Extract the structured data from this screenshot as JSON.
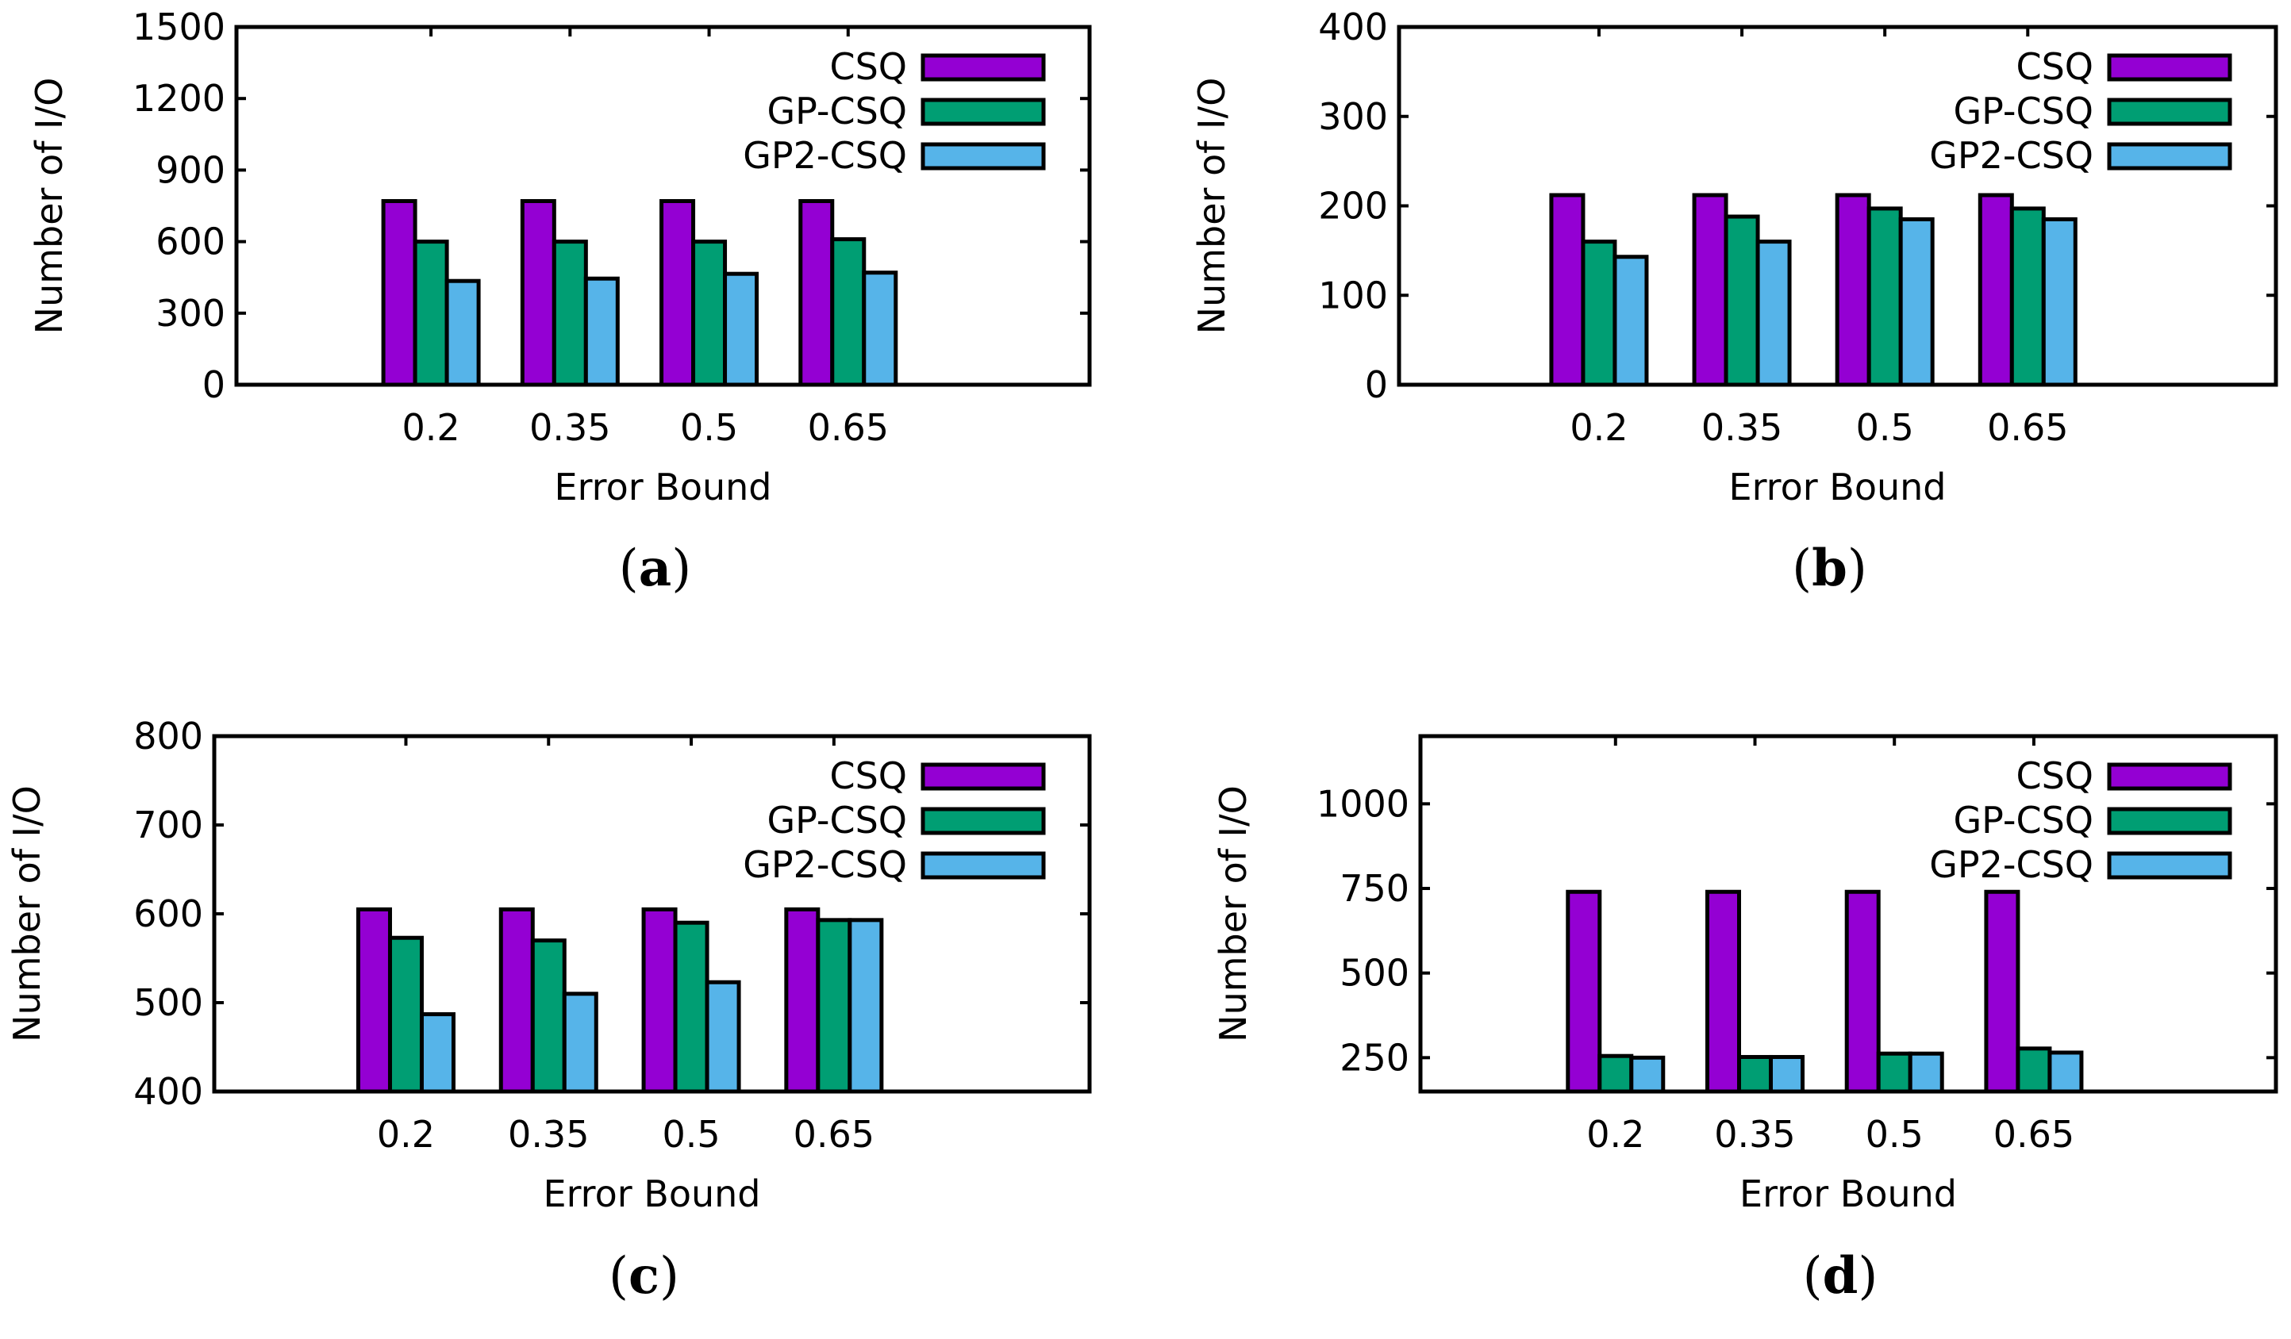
{
  "colors": {
    "CSQ": "#9400d3",
    "GP-CSQ": "#009e73",
    "GP2-CSQ": "#56b4e9",
    "axis": "#000000",
    "background": "#ffffff"
  },
  "chart_data": [
    {
      "type": "bar",
      "panel_label": "a",
      "xlabel": "Error Bound",
      "ylabel": "Number of I/O",
      "categories": [
        "0.2",
        "0.35",
        "0.5",
        "0.65"
      ],
      "ylim": [
        0,
        1500
      ],
      "yticks": [
        0,
        300,
        600,
        900,
        1200,
        1500
      ],
      "legend_position": "top-right",
      "series": [
        {
          "name": "CSQ",
          "values": [
            770,
            770,
            770,
            770
          ]
        },
        {
          "name": "GP-CSQ",
          "values": [
            600,
            600,
            600,
            610
          ]
        },
        {
          "name": "GP2-CSQ",
          "values": [
            435,
            445,
            465,
            470
          ]
        }
      ]
    },
    {
      "type": "bar",
      "panel_label": "b",
      "xlabel": "Error Bound",
      "ylabel": "Number of I/O",
      "categories": [
        "0.2",
        "0.35",
        "0.5",
        "0.65"
      ],
      "ylim": [
        0,
        400
      ],
      "yticks": [
        0,
        100,
        200,
        300,
        400
      ],
      "legend_position": "top-right",
      "series": [
        {
          "name": "CSQ",
          "values": [
            212,
            212,
            212,
            212
          ]
        },
        {
          "name": "GP-CSQ",
          "values": [
            160,
            188,
            197,
            197
          ]
        },
        {
          "name": "GP2-CSQ",
          "values": [
            143,
            160,
            185,
            185
          ]
        }
      ]
    },
    {
      "type": "bar",
      "panel_label": "c",
      "xlabel": "Error Bound",
      "ylabel": "Number of I/O",
      "categories": [
        "0.2",
        "0.35",
        "0.5",
        "0.65"
      ],
      "ylim": [
        400,
        800
      ],
      "yticks": [
        400,
        500,
        600,
        700,
        800
      ],
      "legend_position": "top-right",
      "series": [
        {
          "name": "CSQ",
          "values": [
            605,
            605,
            605,
            605
          ]
        },
        {
          "name": "GP-CSQ",
          "values": [
            573,
            570,
            590,
            593
          ]
        },
        {
          "name": "GP2-CSQ",
          "values": [
            487,
            510,
            523,
            593
          ]
        }
      ]
    },
    {
      "type": "bar",
      "panel_label": "d",
      "xlabel": "Error Bound",
      "ylabel": "Number of I/O",
      "categories": [
        "0.2",
        "0.35",
        "0.5",
        "0.65"
      ],
      "ylim": [
        150,
        1200
      ],
      "yticks": [
        250,
        500,
        750,
        1000
      ],
      "legend_position": "top-right",
      "series": [
        {
          "name": "CSQ",
          "values": [
            740,
            740,
            740,
            740
          ]
        },
        {
          "name": "GP-CSQ",
          "values": [
            255,
            252,
            262,
            277
          ]
        },
        {
          "name": "GP2-CSQ",
          "values": [
            250,
            252,
            262,
            265
          ]
        }
      ]
    }
  ]
}
